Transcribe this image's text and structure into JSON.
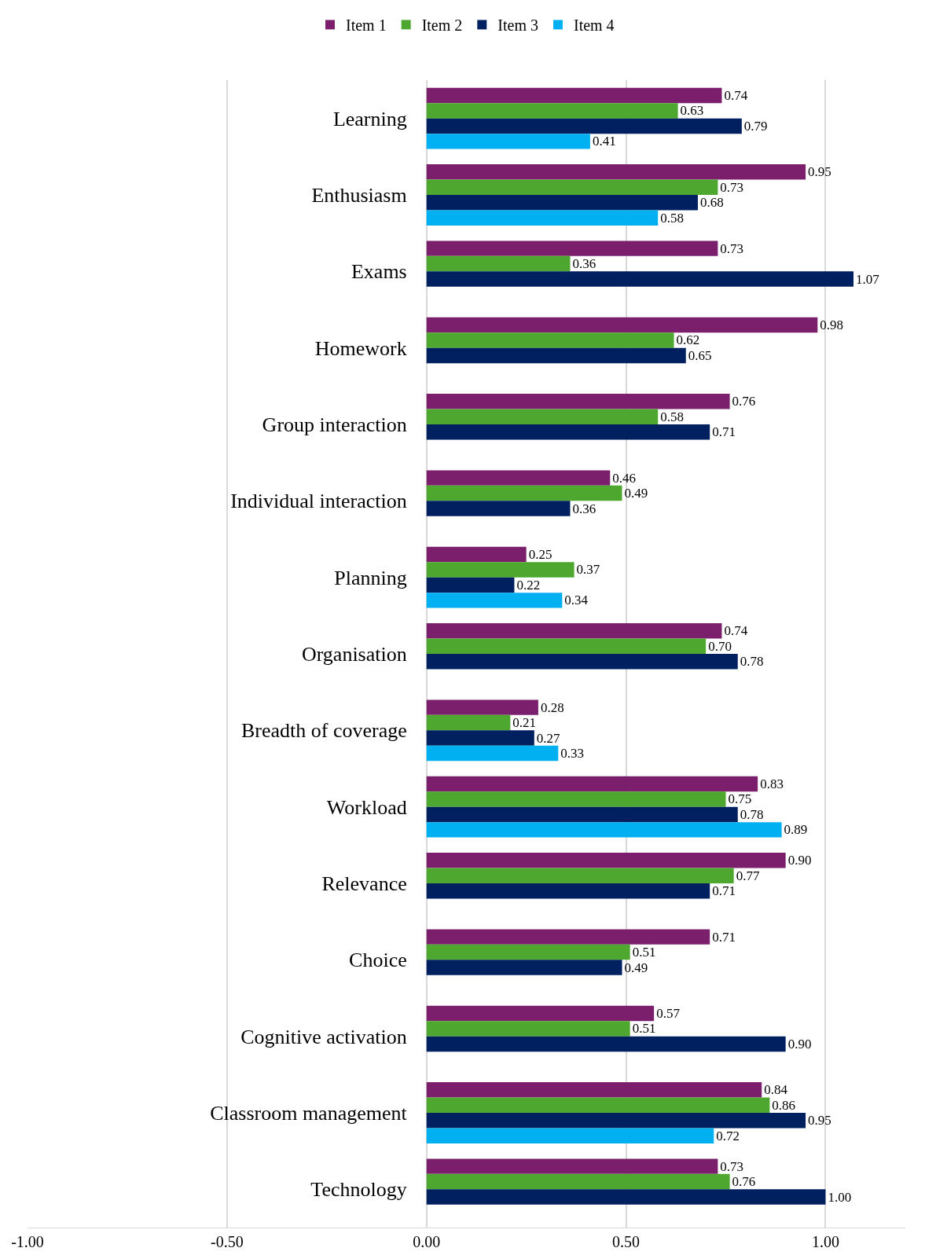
{
  "chart_data": {
    "type": "bar",
    "orientation": "horizontal",
    "categories": [
      "Learning",
      "Enthusiasm",
      "Exams",
      "Homework",
      "Group interaction",
      "Individual interaction",
      "Planning",
      "Organisation",
      "Breadth of coverage",
      "Workload",
      "Relevance",
      "Choice",
      "Cognitive activation",
      "Classroom management",
      "Technology"
    ],
    "series": [
      {
        "name": "Item 1",
        "color": "#7b1f6d",
        "values": [
          0.74,
          0.95,
          0.73,
          0.98,
          0.76,
          0.46,
          0.25,
          0.74,
          0.28,
          0.83,
          0.9,
          0.71,
          0.57,
          0.84,
          0.73
        ],
        "value_labels": [
          "0.74",
          "0.95",
          "0.73",
          "0.98",
          "0.76",
          "0.46",
          "0.25",
          "0.74",
          "0.28",
          "0.83",
          "0.90",
          "0.71",
          "0.57",
          "0.84",
          "0.73"
        ]
      },
      {
        "name": "Item 2",
        "color": "#4ea72e",
        "values": [
          0.63,
          0.73,
          0.36,
          0.62,
          0.58,
          0.49,
          0.37,
          0.7,
          0.21,
          0.75,
          0.77,
          0.51,
          0.51,
          0.86,
          0.76
        ],
        "value_labels": [
          "0.63",
          "0.73",
          "0.36",
          "0.62",
          "0.58",
          "0.49",
          "0.37",
          "0.70",
          "0.21",
          "0.75",
          "0.77",
          "0.51",
          "0.51",
          "0.86",
          "0.76"
        ]
      },
      {
        "name": "Item 3",
        "color": "#002060",
        "values": [
          0.79,
          0.68,
          1.07,
          0.65,
          0.71,
          0.36,
          0.22,
          0.78,
          0.27,
          0.78,
          0.71,
          0.49,
          0.9,
          0.95,
          1.0
        ],
        "value_labels": [
          "0.79",
          "0.68",
          "1.07",
          "0.65",
          "0.71",
          "0.36",
          "0.22",
          "0.78",
          "0.27",
          "0.78",
          "0.71",
          "0.49",
          "0.90",
          "0.95",
          "1.00"
        ]
      },
      {
        "name": "Item 4",
        "color": "#00b0f0",
        "values": [
          0.41,
          0.58,
          null,
          null,
          null,
          null,
          0.34,
          null,
          0.33,
          0.89,
          null,
          null,
          null,
          0.72,
          null
        ],
        "value_labels": [
          "0.41",
          "0.58",
          null,
          null,
          null,
          null,
          "0.34",
          null,
          "0.33",
          "0.89",
          null,
          null,
          null,
          "0.72",
          null
        ]
      }
    ],
    "xlim": [
      -1.0,
      1.2
    ],
    "xticks": [
      {
        "value": -1.0,
        "label": "-1.00"
      },
      {
        "value": -0.5,
        "label": "-0.50"
      },
      {
        "value": 0.0,
        "label": "0.00"
      },
      {
        "value": 0.5,
        "label": "0.50"
      },
      {
        "value": 1.0,
        "label": "1.00"
      }
    ],
    "grid": "x",
    "legend": "top"
  }
}
